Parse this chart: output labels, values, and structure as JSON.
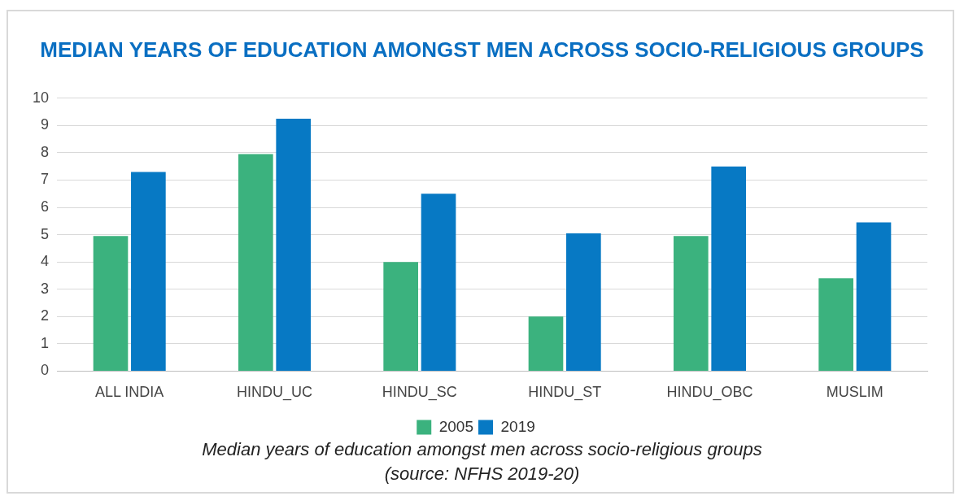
{
  "chart_data": {
    "type": "bar",
    "title": "MEDIAN YEARS OF EDUCATION AMONGST MEN ACROSS SOCIO-RELIGIOUS GROUPS",
    "categories": [
      "ALL INDIA",
      "HINDU_UC",
      "HINDU_SC",
      "HINDU_ST",
      "HINDU_OBC",
      "MUSLIM"
    ],
    "series": [
      {
        "name": "2005",
        "color": "#3bb27e",
        "values": [
          4.95,
          7.95,
          4.0,
          2.0,
          4.95,
          3.4
        ]
      },
      {
        "name": "2019",
        "color": "#0779c4",
        "values": [
          7.3,
          9.25,
          6.5,
          5.05,
          7.5,
          5.45
        ]
      }
    ],
    "ylim": [
      0,
      10
    ],
    "yticks": [
      0,
      1,
      2,
      3,
      4,
      5,
      6,
      7,
      8,
      9,
      10
    ],
    "grid": "y",
    "legend": "bottom",
    "annotations": [
      "Median years of education amongst men across socio-religious groups",
      "(source: NFHS 2019-20)"
    ]
  }
}
